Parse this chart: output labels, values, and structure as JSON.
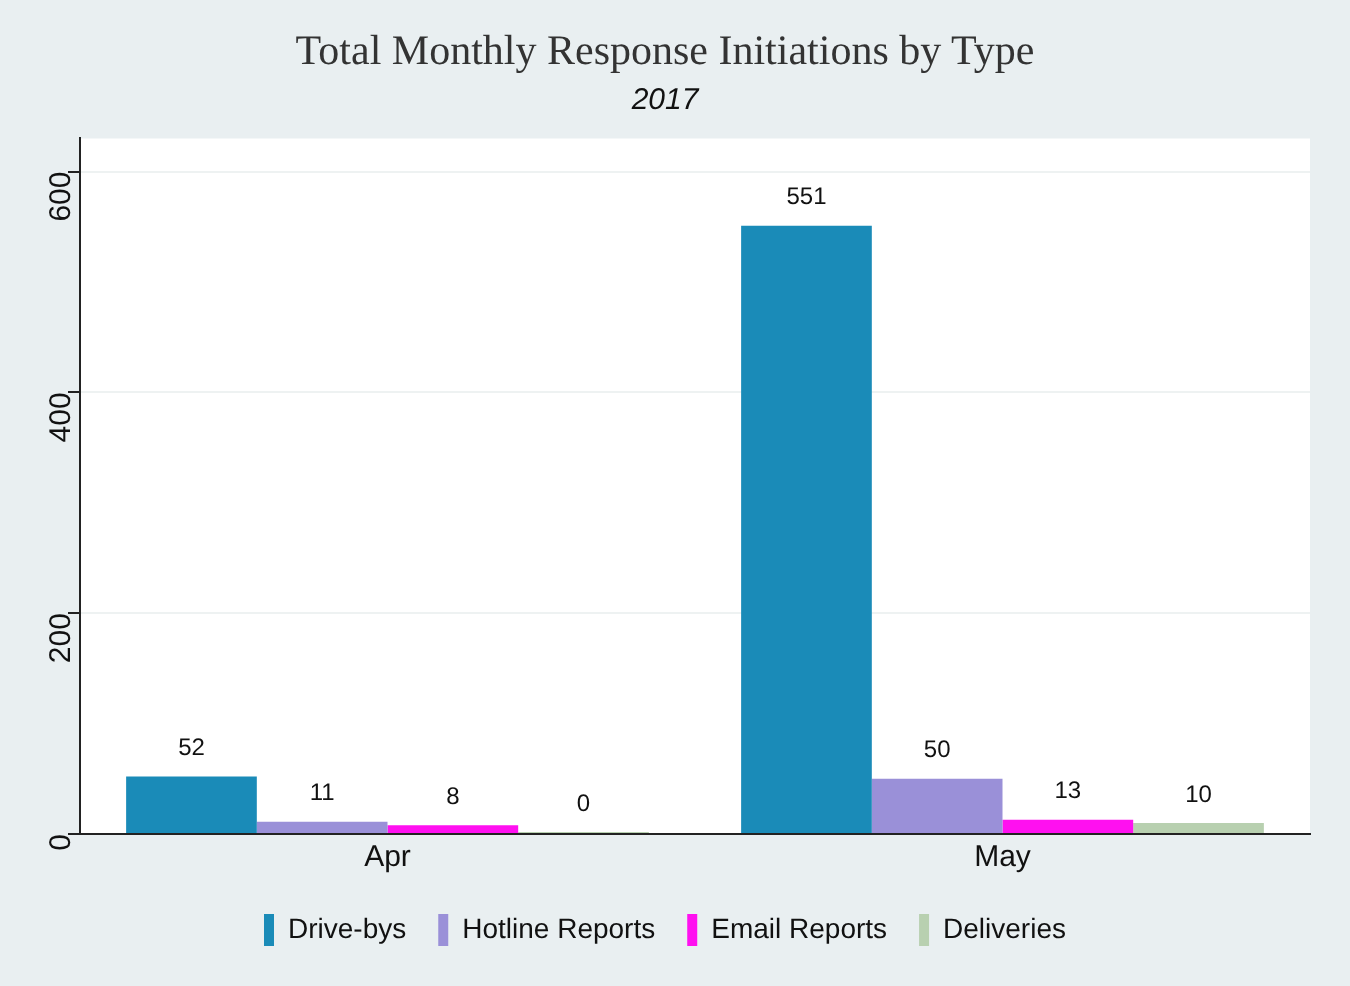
{
  "chart_data": {
    "type": "bar",
    "title": "Total Monthly Response Initiations by Type",
    "subtitle": "2017",
    "categories": [
      "Apr",
      "May"
    ],
    "series": [
      {
        "name": "Drive-bys",
        "color": "#1a8bb8",
        "values": [
          52,
          551
        ]
      },
      {
        "name": "Hotline Reports",
        "color": "#9a90d8",
        "values": [
          11,
          50
        ]
      },
      {
        "name": "Email Reports",
        "color": "#ff10f0",
        "values": [
          8,
          13
        ]
      },
      {
        "name": "Deliveries",
        "color": "#b8d0b0",
        "values": [
          0,
          10
        ]
      }
    ],
    "ylim": [
      0,
      630
    ],
    "yticks": [
      0,
      200,
      400,
      600
    ],
    "grid": "y",
    "legend": "bottom",
    "data_labels": true
  }
}
